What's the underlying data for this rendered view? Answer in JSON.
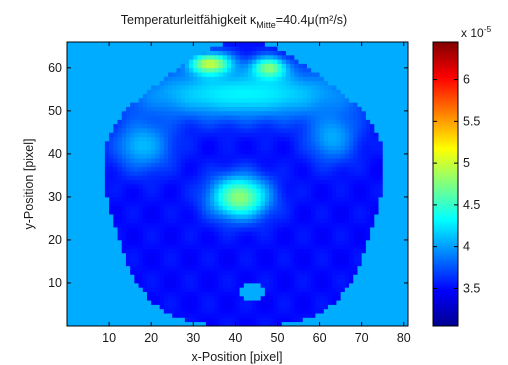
{
  "chart_data": {
    "type": "heatmap",
    "title": {
      "main": "Temperaturleitfähigkeit κ",
      "subscript": "Mitte",
      "value": "=40.4μ(m²/s)"
    },
    "xlabel": "x-Position [pixel]",
    "ylabel": "y-Position [pixel]",
    "xlim": [
      0,
      81
    ],
    "ylim": [
      0,
      66
    ],
    "xticks": [
      "10",
      "20",
      "30",
      "40",
      "50",
      "60",
      "70",
      "80"
    ],
    "yticks": [
      "10",
      "20",
      "30",
      "40",
      "50",
      "60"
    ],
    "colorbar": {
      "exponent_label": "x 10",
      "exponent": "-5",
      "range": [
        3.05,
        6.45
      ],
      "ticks": [
        "3.5",
        "4",
        "4.5",
        "5",
        "5.5",
        "6"
      ],
      "colormap": "jet"
    },
    "field": {
      "background_value": 4.05,
      "disc_center": [
        42,
        32
      ],
      "disc_radius": 33,
      "disc_base_value": 3.5,
      "hole_center": [
        44,
        8
      ],
      "hole_size": [
        3,
        2.5
      ],
      "features": [
        {
          "kind": "central-blob",
          "center": [
            41,
            30
          ],
          "spread": [
            7,
            5
          ],
          "value": 4.8
        },
        {
          "kind": "top-arc-band",
          "center": [
            42,
            54
          ],
          "spread": [
            28,
            6
          ],
          "value": 4.3
        },
        {
          "kind": "top-hot-spot",
          "center": [
            34,
            61
          ],
          "spread": [
            5,
            2.5
          ],
          "value": 5.0
        },
        {
          "kind": "top-hot-spot",
          "center": [
            48,
            60
          ],
          "spread": [
            4,
            2.5
          ],
          "value": 4.8
        },
        {
          "kind": "upper-left-lobe",
          "center": [
            18,
            42
          ],
          "spread": [
            7,
            6
          ],
          "value": 4.1
        },
        {
          "kind": "upper-right-lobe",
          "center": [
            63,
            44
          ],
          "spread": [
            6,
            6
          ],
          "value": 4.05
        }
      ]
    }
  }
}
